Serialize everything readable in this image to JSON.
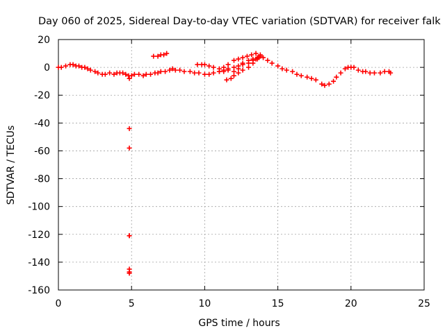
{
  "chart_data": {
    "type": "scatter",
    "title": "Day 060 of 2025, Sidereal Day-to-day VTEC variation (SDTVAR) for receiver falk",
    "xlabel": "GPS time / hours",
    "ylabel": "SDTVAR / TECUs",
    "xlim": [
      0,
      25
    ],
    "ylim": [
      -160,
      20
    ],
    "xticks": [
      "0",
      "5",
      "10",
      "15",
      "20",
      "25"
    ],
    "yticks": [
      "20",
      "0",
      "-20",
      "-40",
      "-60",
      "-80",
      "-100",
      "-120",
      "-140",
      "-160"
    ],
    "grid": true,
    "marker": "plus",
    "colors": {
      "series": "#ff0000",
      "grid": "#a0a0a0",
      "axis": "#000000"
    },
    "series": [
      {
        "name": "",
        "x": [
          0.0,
          0.2,
          0.5,
          0.8,
          1.0,
          1.2,
          1.4,
          1.6,
          1.8,
          2.0,
          2.2,
          2.5,
          2.7,
          3.0,
          3.2,
          3.5,
          3.8,
          4.0,
          4.2,
          4.4,
          4.6,
          4.8,
          4.85,
          5.0,
          5.2,
          5.5,
          5.8,
          6.0,
          6.3,
          6.6,
          6.8,
          7.0,
          7.3,
          7.6,
          7.8,
          8.0,
          8.3,
          8.6,
          9.0,
          9.3,
          9.6,
          10.0,
          10.3,
          10.6,
          11.0,
          11.3,
          11.6,
          12.0,
          12.3,
          12.6,
          13.0,
          13.3,
          13.5,
          13.7,
          14.0,
          14.3,
          14.6,
          15.0,
          15.3,
          15.6,
          16.0,
          16.3,
          16.6,
          17.0,
          17.3,
          17.6,
          18.0,
          18.2,
          18.5,
          18.8,
          19.0,
          19.3,
          19.6,
          19.8,
          20.0,
          20.2,
          20.5,
          20.8,
          21.0,
          21.3,
          21.6,
          22.0,
          22.3,
          22.6,
          22.7,
          6.5,
          6.8,
          7.0,
          7.2,
          7.4,
          9.5,
          9.8,
          10.0,
          10.3,
          10.6,
          11.0,
          11.3,
          11.6,
          12.0,
          12.3,
          12.6,
          12.9,
          13.2,
          13.5,
          13.8,
          11.0,
          11.3,
          11.6,
          12.0,
          12.3,
          12.6,
          13.0,
          13.3,
          13.6,
          13.8,
          11.5,
          11.8,
          12.0,
          12.3,
          12.6,
          13.0,
          13.3,
          13.6,
          4.85,
          4.85,
          4.85,
          4.85,
          4.85,
          4.85,
          4.85
        ],
        "y": [
          0,
          0,
          1,
          2,
          2,
          1,
          1,
          0,
          0,
          -1,
          -2,
          -3,
          -4,
          -5,
          -5,
          -4,
          -5,
          -4,
          -4,
          -4,
          -5,
          -6,
          -8,
          -6,
          -5,
          -5,
          -6,
          -5,
          -5,
          -4,
          -4,
          -3,
          -3,
          -2,
          -1,
          -2,
          -2,
          -3,
          -3,
          -4,
          -4,
          -5,
          -5,
          -4,
          -3,
          -3,
          -2,
          -3,
          -1,
          2,
          3,
          5,
          6,
          7,
          7,
          5,
          3,
          1,
          -1,
          -2,
          -3,
          -5,
          -6,
          -7,
          -8,
          -9,
          -12,
          -13,
          -12,
          -10,
          -7,
          -4,
          -1,
          0,
          0,
          0,
          -2,
          -3,
          -3,
          -4,
          -4,
          -4,
          -3,
          -3,
          -4,
          8,
          8,
          9,
          9,
          10,
          2,
          2,
          2,
          1,
          0,
          -1,
          0,
          2,
          5,
          6,
          7,
          8,
          9,
          10,
          9,
          -3,
          -2,
          -1,
          0,
          1,
          3,
          5,
          6,
          7,
          8,
          -9,
          -8,
          -6,
          -4,
          -2,
          0,
          3,
          6,
          -44,
          -58,
          -121,
          -145,
          -147,
          -148,
          -121
        ]
      }
    ]
  }
}
